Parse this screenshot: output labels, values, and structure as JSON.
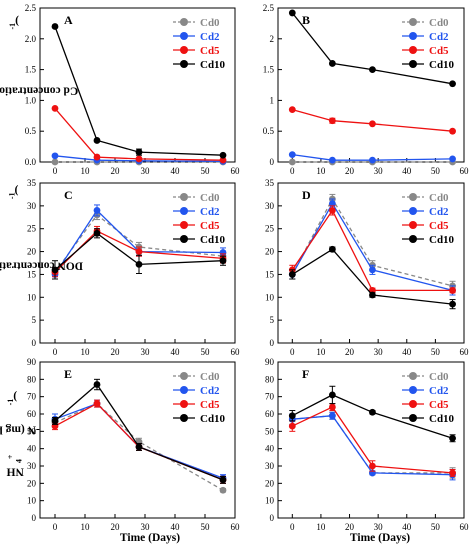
{
  "figure": {
    "row_ylabels": [
      {
        "before": "Cd concentration (mg kg",
        "sup": "-1",
        "after": ")"
      },
      {
        "before": "DON concentration (mg kg",
        "sup": "-1",
        "after": ")"
      },
      {
        "before": "NH",
        "sub": "4",
        "sup": "+",
        "after": "-N  (mg kg",
        "sup2": "-1",
        "after2": ")"
      }
    ],
    "xlabel": "Time (Days)"
  },
  "series_styles": [
    {
      "name": "Cd0",
      "color": "#888888",
      "dash": true
    },
    {
      "name": "Cd2",
      "color": "#2255ee",
      "dash": false
    },
    {
      "name": "Cd5",
      "color": "#ee1111",
      "dash": false
    },
    {
      "name": "Cd10",
      "color": "#000000",
      "dash": false
    }
  ],
  "chart_data": [
    {
      "panel": "A",
      "type": "line",
      "x": [
        0,
        14,
        28,
        56
      ],
      "xlim": [
        -5,
        60
      ],
      "xticks": [
        0,
        10,
        20,
        30,
        40,
        50,
        60
      ],
      "ylim": [
        0,
        2.5
      ],
      "yticks": [
        "0.0",
        "0.5",
        "1.0",
        "1.5",
        "2.0",
        "2.5"
      ],
      "series": [
        {
          "name": "Cd0",
          "values": [
            0.0,
            0.0,
            0.0,
            0.0
          ],
          "err": [
            0,
            0,
            0,
            0
          ]
        },
        {
          "name": "Cd2",
          "values": [
            0.1,
            0.03,
            0.02,
            0.01
          ],
          "err": [
            0,
            0,
            0,
            0
          ]
        },
        {
          "name": "Cd5",
          "values": [
            0.87,
            0.08,
            0.05,
            0.03
          ],
          "err": [
            0,
            0,
            0,
            0
          ]
        },
        {
          "name": "Cd10",
          "values": [
            2.2,
            0.35,
            0.16,
            0.11
          ],
          "err": [
            0,
            0,
            0.05,
            0
          ]
        }
      ]
    },
    {
      "panel": "B",
      "type": "line",
      "x": [
        0,
        14,
        28,
        56
      ],
      "xlim": [
        -5,
        60
      ],
      "xticks": [
        0,
        10,
        20,
        30,
        40,
        50,
        60
      ],
      "ylim": [
        0,
        2.5
      ],
      "yticks": [
        "0",
        "0.5",
        "1",
        "1.5",
        "2",
        "2.5"
      ],
      "series": [
        {
          "name": "Cd0",
          "values": [
            0.0,
            0.0,
            0.0,
            0.0
          ],
          "err": [
            0,
            0,
            0,
            0
          ]
        },
        {
          "name": "Cd2",
          "values": [
            0.12,
            0.03,
            0.03,
            0.05
          ],
          "err": [
            0,
            0,
            0,
            0
          ]
        },
        {
          "name": "Cd5",
          "values": [
            0.85,
            0.67,
            0.62,
            0.5
          ],
          "err": [
            0,
            0.04,
            0,
            0
          ]
        },
        {
          "name": "Cd10",
          "values": [
            2.42,
            1.6,
            1.5,
            1.27
          ],
          "err": [
            0,
            0,
            0,
            0
          ]
        }
      ]
    },
    {
      "panel": "C",
      "type": "line",
      "x": [
        0,
        14,
        28,
        56
      ],
      "xlim": [
        -5,
        60
      ],
      "xticks": [
        0,
        10,
        20,
        30,
        40,
        50,
        60
      ],
      "ylim": [
        0,
        35
      ],
      "yticks": [
        "0",
        "5",
        "10",
        "15",
        "20",
        "25",
        "30",
        "35"
      ],
      "series": [
        {
          "name": "Cd0",
          "values": [
            15.5,
            28.0,
            21.0,
            19.0
          ],
          "err": [
            1,
            1,
            1,
            1
          ]
        },
        {
          "name": "Cd2",
          "values": [
            15.0,
            29.0,
            20.0,
            19.8
          ],
          "err": [
            1,
            1.2,
            1,
            1
          ]
        },
        {
          "name": "Cd5",
          "values": [
            15.5,
            24.5,
            20.0,
            18.5
          ],
          "err": [
            1,
            1,
            1,
            1
          ]
        },
        {
          "name": "Cd10",
          "values": [
            16.0,
            24.0,
            17.2,
            18.0
          ],
          "err": [
            2,
            1,
            2,
            1
          ]
        }
      ]
    },
    {
      "panel": "D",
      "type": "line",
      "x": [
        0,
        14,
        28,
        56
      ],
      "xlim": [
        -5,
        60
      ],
      "xticks": [
        0,
        10,
        20,
        30,
        40,
        50,
        60
      ],
      "ylim": [
        0,
        35
      ],
      "yticks": [
        "0",
        "5",
        "10",
        "15",
        "20",
        "25",
        "30",
        "35"
      ],
      "series": [
        {
          "name": "Cd0",
          "values": [
            15.0,
            31.5,
            17.0,
            12.5
          ],
          "err": [
            1,
            1,
            1,
            1
          ]
        },
        {
          "name": "Cd2",
          "values": [
            15.0,
            30.5,
            16.0,
            11.5
          ],
          "err": [
            1,
            1,
            1,
            1
          ]
        },
        {
          "name": "Cd5",
          "values": [
            16.0,
            29.0,
            11.5,
            11.5
          ],
          "err": [
            1,
            1,
            0.5,
            0.5
          ]
        },
        {
          "name": "Cd10",
          "values": [
            15.0,
            20.5,
            10.5,
            8.5
          ],
          "err": [
            1,
            0.5,
            0.5,
            1
          ]
        }
      ]
    },
    {
      "panel": "E",
      "type": "line",
      "x": [
        0,
        14,
        28,
        56
      ],
      "xlim": [
        -5,
        60
      ],
      "xticks": [
        0,
        10,
        20,
        30,
        40,
        50,
        60
      ],
      "ylim": [
        0,
        90
      ],
      "yticks": [
        "0",
        "10",
        "20",
        "30",
        "40",
        "50",
        "60",
        "70",
        "80",
        "90"
      ],
      "series": [
        {
          "name": "Cd0",
          "values": [
            55,
            66,
            44,
            16
          ],
          "err": [
            2,
            2,
            2,
            1
          ]
        },
        {
          "name": "Cd2",
          "values": [
            57,
            66,
            41,
            23
          ],
          "err": [
            3,
            2,
            2,
            2
          ]
        },
        {
          "name": "Cd5",
          "values": [
            53,
            66,
            41,
            22
          ],
          "err": [
            2,
            2,
            2,
            2
          ]
        },
        {
          "name": "Cd10",
          "values": [
            56,
            77,
            41,
            22
          ],
          "err": [
            2,
            3,
            2,
            2
          ]
        }
      ]
    },
    {
      "panel": "F",
      "type": "line",
      "x": [
        0,
        14,
        28,
        56
      ],
      "xlim": [
        -5,
        60
      ],
      "xticks": [
        0,
        10,
        20,
        30,
        40,
        50,
        60
      ],
      "ylim": [
        0,
        90
      ],
      "yticks": [
        "0",
        "10",
        "20",
        "30",
        "40",
        "50",
        "60",
        "70",
        "80",
        "90"
      ],
      "series": [
        {
          "name": "Cd0",
          "values": [
            57,
            59,
            26,
            26
          ],
          "err": [
            3,
            2,
            1,
            3
          ]
        },
        {
          "name": "Cd2",
          "values": [
            57,
            59,
            26,
            25
          ],
          "err": [
            3,
            2,
            1,
            3
          ]
        },
        {
          "name": "Cd5",
          "values": [
            53,
            64,
            30,
            26
          ],
          "err": [
            3,
            2,
            3,
            2
          ]
        },
        {
          "name": "Cd10",
          "values": [
            59,
            71,
            61,
            46
          ],
          "err": [
            3,
            5,
            1,
            2
          ]
        }
      ]
    }
  ]
}
